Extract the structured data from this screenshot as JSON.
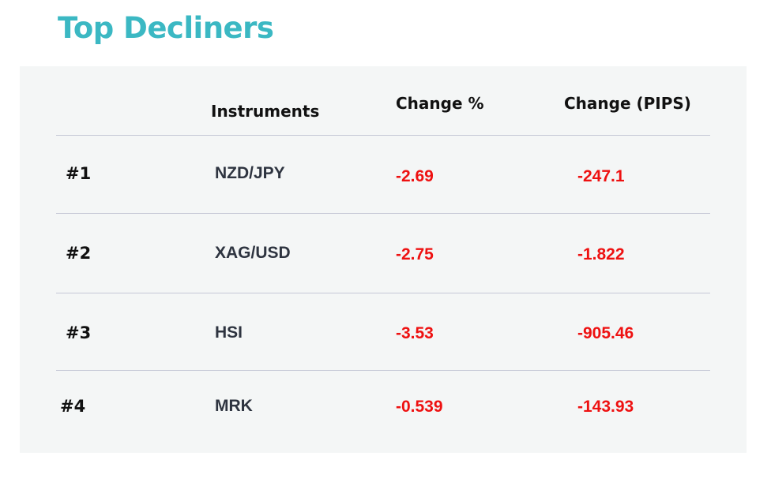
{
  "header": {
    "title": "Top Decliners"
  },
  "table": {
    "columns": [
      "",
      "Instruments",
      "Change %",
      "Change (PIPS)"
    ],
    "rows": [
      [
        "#1",
        "NZD/JPY",
        "-2.69",
        "-247.1"
      ],
      [
        "#2",
        "XAG/USD",
        "-2.75",
        "-1.822"
      ],
      [
        "#3",
        "HSI",
        "-3.53",
        "-905.46"
      ],
      [
        "#4",
        "MRK",
        "-0.539",
        "-143.93"
      ]
    ]
  }
}
